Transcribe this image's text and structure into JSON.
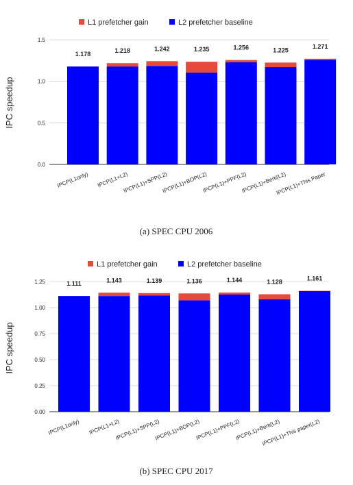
{
  "chart_data": [
    {
      "type": "bar",
      "stacked": true,
      "caption": "(a) SPEC CPU 2006",
      "ylabel": "IPC speedup",
      "ylim": [
        0,
        1.5
      ],
      "yticks": [
        "0.0",
        "0.5",
        "1.0",
        "1.5"
      ],
      "legend_position": "top",
      "categories": [
        "IPCP(L1only)",
        "IPCP(L1+L2)",
        "IPCP(L1)+SPP(L2)",
        "IPCP(L1)+BOP(L2)",
        "IPCP(L1)+PPF(L2)",
        "IPCP(L1)+Berti(L2)",
        "IPCP(L1)+This Paper"
      ],
      "totals": [
        "1.178",
        "1.218",
        "1.242",
        "1.235",
        "1.256",
        "1.225",
        "1.271"
      ],
      "series": [
        {
          "name": "L2 prefetcher baseline",
          "color": "#0000ff",
          "values": [
            1.178,
            1.178,
            1.185,
            1.105,
            1.228,
            1.17,
            1.258
          ]
        },
        {
          "name": "L1 prefetcher gain",
          "color": "#e64a3b",
          "values": [
            0.0,
            0.04,
            0.057,
            0.13,
            0.028,
            0.055,
            0.013
          ]
        }
      ]
    },
    {
      "type": "bar",
      "stacked": true,
      "caption": "(b) SPEC CPU 2017",
      "ylabel": "IPC speedup",
      "ylim": [
        0,
        1.25
      ],
      "yticks": [
        "0.00",
        "0.25",
        "0.50",
        "0.75",
        "1.00",
        "1.25"
      ],
      "legend_position": "top",
      "categories": [
        "IPCP(L1only)",
        "IPCP(L1+L2)",
        "IPCP(L1)+SPP(L2)",
        "IPCP(L1)+BOP(L2)",
        "IPCP(L1)+PPF(L2)",
        "IPCP(L1)+Berti(L2)",
        "IPCP(L1)+This paper(L2)"
      ],
      "totals": [
        "1.111",
        "1.143",
        "1.139",
        "1.136",
        "1.144",
        "1.128",
        "1.161"
      ],
      "series": [
        {
          "name": "L2 prefetcher baseline",
          "color": "#0000ff",
          "values": [
            1.111,
            1.111,
            1.115,
            1.07,
            1.125,
            1.08,
            1.158
          ]
        },
        {
          "name": "L1 prefetcher gain",
          "color": "#e64a3b",
          "values": [
            0.0,
            0.032,
            0.024,
            0.066,
            0.019,
            0.048,
            0.003
          ]
        }
      ]
    }
  ]
}
